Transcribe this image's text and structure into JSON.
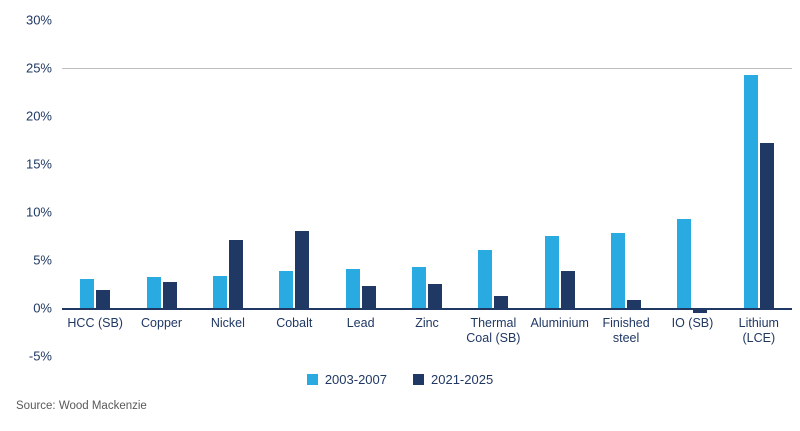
{
  "chart_data": {
    "type": "bar",
    "title": "",
    "categories": [
      "HCC (SB)",
      "Copper",
      "Nickel",
      "Cobalt",
      "Lead",
      "Zinc",
      "Thermal Coal (SB)",
      "Aluminium",
      "Finished steel",
      "IO (SB)",
      "Lithium (LCE)"
    ],
    "series": [
      {
        "name": "2003-2007",
        "color": "#29abe2",
        "values": [
          3.0,
          3.2,
          3.3,
          3.8,
          4.0,
          4.2,
          6.0,
          7.5,
          7.8,
          9.2,
          24.2
        ]
      },
      {
        "name": "2021-2025",
        "color": "#1f3864",
        "values": [
          1.8,
          2.7,
          7.0,
          8.0,
          2.3,
          2.5,
          1.2,
          3.8,
          0.8,
          -0.4,
          17.1
        ]
      }
    ],
    "xlabel": "",
    "ylabel": "",
    "ylim": [
      -5,
      30
    ],
    "yticks": [
      30,
      25,
      20,
      15,
      10,
      5,
      0,
      -5
    ],
    "ytick_labels": [
      "30%",
      "25%",
      "20%",
      "15%",
      "10%",
      "5%",
      "0%",
      "-5%"
    ],
    "grid": "horizontal line at 25% only; axis baseline at 0%",
    "legend_position": "bottom-center"
  },
  "source": {
    "label": "Source: Wood Mackenzie"
  },
  "colors": {
    "series1": "#29abe2",
    "series2": "#1f3864",
    "axis": "#1f3864",
    "gridline": "#bfbfbf",
    "source_text": "#595959"
  }
}
